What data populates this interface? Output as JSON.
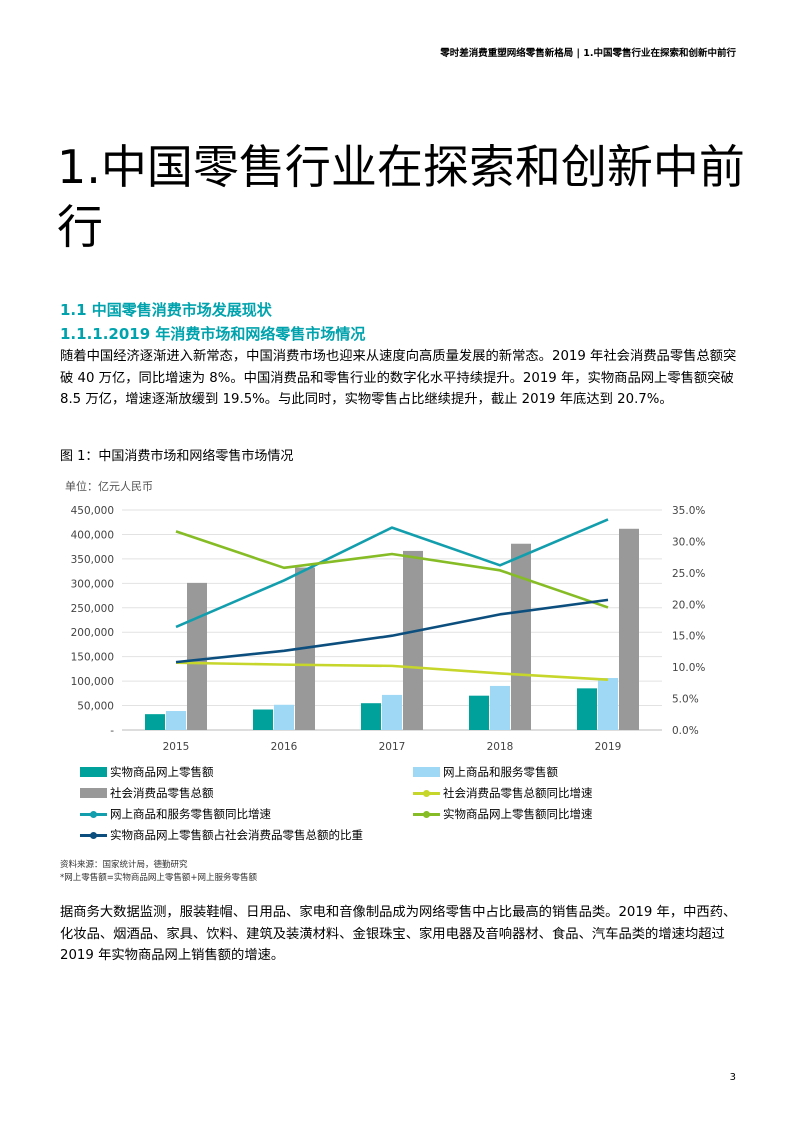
{
  "header": {
    "running_title": "零时差消费重塑网络零售新格局 | 1.中国零售行业在探索和创新中前行"
  },
  "chapter": {
    "title": "1.中国零售行业在探索和创新中前行"
  },
  "section": {
    "title": "1.1 中国零售消费市场发展现状",
    "subtitle": "1.1.1.2019 年消费市场和网络零售市场情况"
  },
  "paragraphs": {
    "intro": "随着中国经济逐渐进入新常态，中国消费市场也迎来从速度向高质量发展的新常态。2019 年社会消费品零售总额突破 40 万亿，同比增速为 8%。中国消费品和零售行业的数字化水平持续提升。2019 年，实物商品网上零售额突破 8.5 万亿，增速逐渐放缓到 19.5%。与此同时，实物零售占比继续提升，截止 2019 年底达到 20.7%。",
    "closing": "据商务大数据监测，服装鞋帽、日用品、家电和音像制品成为网络零售中占比最高的销售品类。2019 年，中西药、化妆品、烟酒品、家具、饮料、建筑及装潢材料、金银珠宝、家用电器及音响器材、食品、汽车品类的增速均超过 2019 年实物商品网上销售额的增速。"
  },
  "figure": {
    "caption": "图 1：中国消费市场和网络零售市场情况",
    "unit": "单位：亿元人民币",
    "source": "资料来源：国家统计局，德勤研究",
    "note": "*网上零售额=实物商品网上零售额+网上服务零售额"
  },
  "colors": {
    "teal": "#00a19a",
    "light_blue": "#9ed8f5",
    "gray": "#999999",
    "yellow_green": "#c6d62b",
    "cyan": "#139ead",
    "green": "#86bc25",
    "navy": "#0c4f7e",
    "heading": "#00a3ad"
  },
  "chart_data": {
    "type": "bar",
    "categories": [
      "2015",
      "2016",
      "2017",
      "2018",
      "2019"
    ],
    "left_axis": {
      "ylim": [
        0,
        450000
      ],
      "tick_labels": [
        "-",
        "50,000",
        "100,000",
        "150,000",
        "200,000",
        "250,000",
        "300,000",
        "350,000",
        "400,000",
        "450,000"
      ]
    },
    "right_axis": {
      "ylim": [
        0,
        0.35
      ],
      "tick_labels": [
        "0.0%",
        "5.0%",
        "10.0%",
        "15.0%",
        "20.0%",
        "25.0%",
        "30.0%",
        "35.0%"
      ]
    },
    "bar_series": [
      {
        "name": "实物商品网上零售额",
        "color": "#00a19a",
        "values": [
          32400,
          41900,
          54800,
          70200,
          85200
        ]
      },
      {
        "name": "网上商品和服务零售额",
        "color": "#9ed8f5",
        "values": [
          38800,
          51600,
          71800,
          90100,
          106300
        ]
      },
      {
        "name": "社会消费品零售总额",
        "color": "#999999",
        "values": [
          300900,
          332300,
          366300,
          381000,
          411600
        ]
      }
    ],
    "line_series": [
      {
        "name": "社会消费品零售总额同比增速",
        "color": "#c6d62b",
        "values": [
          0.107,
          0.104,
          0.102,
          0.09,
          0.08
        ]
      },
      {
        "name": "网上商品和服务零售额同比增速",
        "color": "#139ead",
        "values": [
          0.164,
          0.238,
          0.322,
          0.262,
          0.335
        ]
      },
      {
        "name": "实物商品网上零售额同比增速",
        "color": "#86bc25",
        "values": [
          0.316,
          0.258,
          0.28,
          0.254,
          0.195
        ]
      },
      {
        "name": "实物商品网上零售额占社会消费品零售总额的比重",
        "color": "#0c4f7e",
        "values": [
          0.108,
          0.126,
          0.15,
          0.184,
          0.207
        ]
      }
    ]
  },
  "legend": {
    "items": [
      "实物商品网上零售额",
      "网上商品和服务零售额",
      "社会消费品零售总额",
      "社会消费品零售总额同比增速",
      "网上商品和服务零售额同比增速",
      "实物商品网上零售额同比增速",
      "实物商品网上零售额占社会消费品零售总额的比重"
    ]
  },
  "footer": {
    "page_number": "3"
  }
}
